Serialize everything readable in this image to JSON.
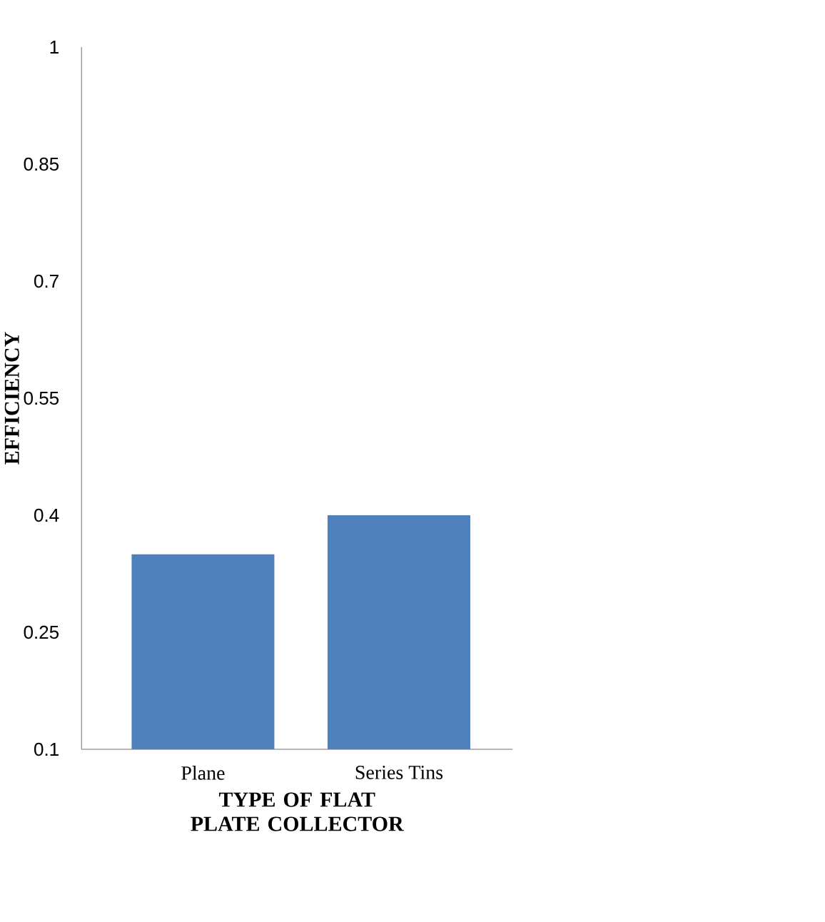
{
  "chart_data": {
    "type": "bar",
    "categories": [
      "Plane",
      "Series Tins"
    ],
    "values": [
      0.35,
      0.4
    ],
    "color": "#4f81bd",
    "xlabel": "TYPE OF FLAT PLATE COLLECTOR",
    "ylabel": "EFFICIENCY",
    "ylim": [
      0.1,
      1
    ],
    "yticks": [
      0.1,
      0.25,
      0.4,
      0.55,
      0.7,
      0.85,
      1
    ],
    "grid": false
  }
}
